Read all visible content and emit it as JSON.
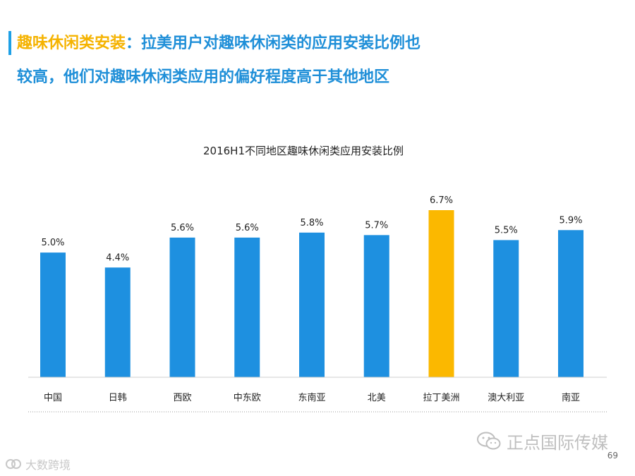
{
  "headline": {
    "key": "趣味休闲类安装",
    "line1": "：拉美用户对趣味休闲类的应用安装比例也",
    "line2": "较高，他们对趣味休闲类应用的偏好程度高于其他地区"
  },
  "chart_data": {
    "type": "bar",
    "title": "2016H1不同地区趣味休闲类应用安装比例",
    "categories": [
      "中国",
      "日韩",
      "西欧",
      "中东欧",
      "东南亚",
      "北美",
      "拉丁美洲",
      "澳大利亚",
      "南亚"
    ],
    "values": [
      5.0,
      4.4,
      5.6,
      5.6,
      5.8,
      5.7,
      6.7,
      5.5,
      5.9
    ],
    "labels": [
      "5.0%",
      "4.4%",
      "5.6%",
      "5.6%",
      "5.8%",
      "5.7%",
      "6.7%",
      "5.5%",
      "5.9%"
    ],
    "unit": "%",
    "highlight_category": "拉丁美洲",
    "ylim": [
      0,
      6.7
    ],
    "xlabel": "",
    "ylabel": "",
    "grid": false
  },
  "colors": {
    "bar": "#1e90e0",
    "highlight": "#fbb800",
    "headline": "#1f8fd8",
    "headline_key": "#f5b301"
  },
  "footer": {
    "brand": "正点国际传媒",
    "page_number": "69",
    "source": "大数跨境"
  }
}
